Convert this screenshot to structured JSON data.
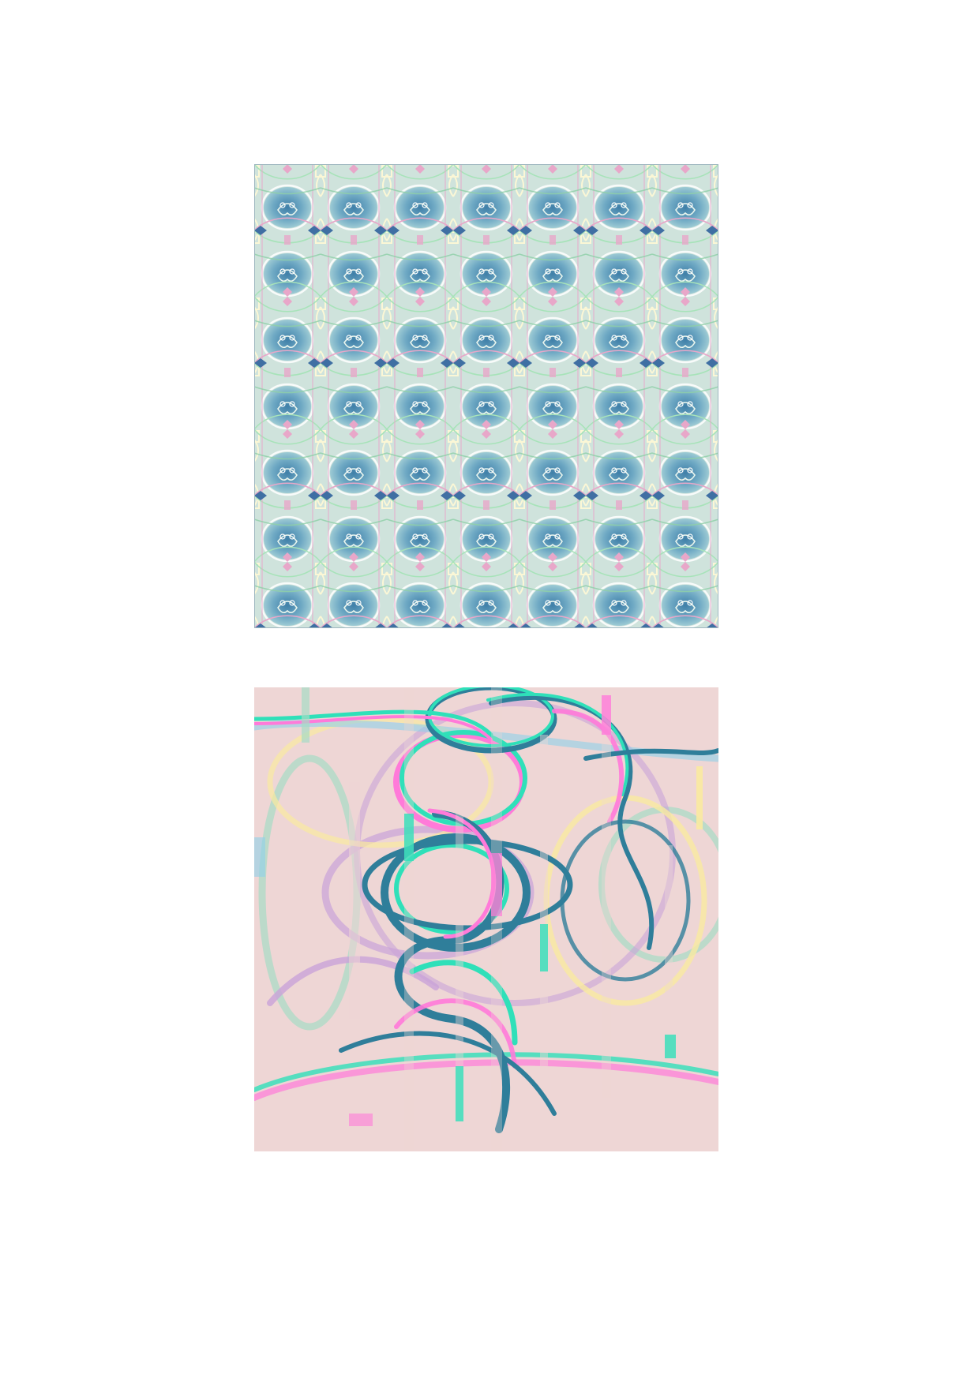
{
  "page": {
    "background": "#ffffff"
  },
  "artworks": [
    {
      "name": "kaleidoscope-pattern",
      "background": "#cfe3dc",
      "palette": [
        "#5a9bb8",
        "#8fc6d6",
        "#b5e0c8",
        "#fbf7d6",
        "#e8a7c9",
        "#3f6fa3",
        "#ffffff"
      ]
    },
    {
      "name": "glitch-loops",
      "background": "#eed6d5",
      "palette": [
        "#2f7e9a",
        "#2fe0b9",
        "#ff7ad9",
        "#f9eaa0",
        "#a6dcc4",
        "#c9a3d8",
        "#8fd0ea"
      ]
    }
  ]
}
